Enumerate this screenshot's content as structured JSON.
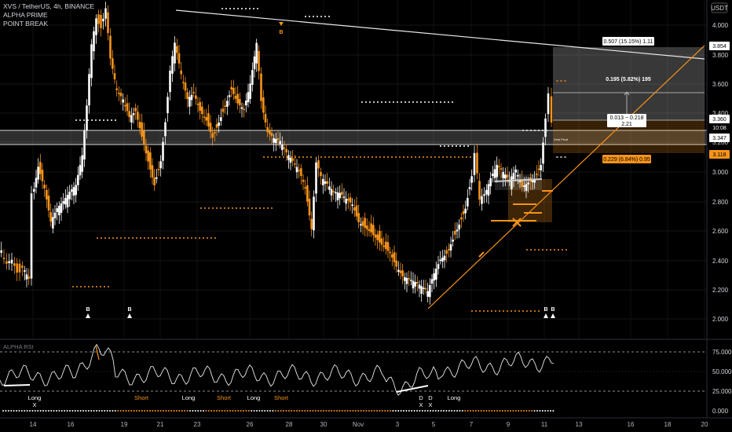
{
  "header": {
    "symbol_line": "XVS / TetherUS, 4h, BINANCE",
    "indicator_1": "ALPHA PRIME",
    "indicator_2": "POINT BREAK",
    "currency": "USDT"
  },
  "price_axis": {
    "ticks": [
      "4.000",
      "3.800",
      "3.600",
      "3.400",
      "3.200",
      "3.000",
      "2.800",
      "2.600",
      "2.400",
      "2.200",
      "2.000"
    ],
    "tags": [
      {
        "text": "3.854",
        "style": "light"
      },
      {
        "text": "3.360",
        "style": "light"
      },
      {
        "text": "10:08",
        "style": "dark"
      },
      {
        "text": "3.347",
        "style": "light"
      },
      {
        "text": "3.118",
        "style": "orange"
      }
    ]
  },
  "measure_boxes": {
    "top": "0.507 (15.15%) 1.11",
    "middle": "0.195 (5.82%) 195",
    "small_1": "0.013 ~ 0.218",
    "small_2": "2.21",
    "bottom": "0.229 (6.84%) 0.95",
    "mini": "Zeta Pivot"
  },
  "chart_markers": {
    "b_top": "B",
    "b_bottom": [
      "B",
      "B",
      "B",
      "B"
    ]
  },
  "oscillator": {
    "title": "ALPHA RSI",
    "ticks": [
      "75.000",
      "50.000",
      "25.000",
      "0.000"
    ],
    "signals": [
      {
        "label": "Long",
        "color": "#ffffff"
      },
      {
        "label": "X",
        "color": "#ffffff"
      },
      {
        "label": "Short",
        "color": "#f7931a"
      },
      {
        "label": "Long",
        "color": "#ffffff"
      },
      {
        "label": "Short",
        "color": "#f7931a"
      },
      {
        "label": "Long",
        "color": "#ffffff"
      },
      {
        "label": "Short",
        "color": "#f7931a"
      },
      {
        "label": "D",
        "color": "#ffffff"
      },
      {
        "label": "D",
        "color": "#ffffff"
      },
      {
        "label": "X",
        "color": "#ffffff"
      },
      {
        "label": "X",
        "color": "#ffffff"
      },
      {
        "label": "Long",
        "color": "#ffffff"
      }
    ]
  },
  "time_axis": [
    "14",
    "16",
    "19",
    "21",
    "23",
    "26",
    "28",
    "30",
    "Nov",
    "3",
    "5",
    "7",
    "9",
    "11",
    "13",
    "16",
    "18",
    "20"
  ],
  "colors": {
    "background": "#000000",
    "bull": "#ffffff",
    "bear": "#f7931a",
    "accent": "#f7931a",
    "grid": "#1c1c1c"
  }
}
